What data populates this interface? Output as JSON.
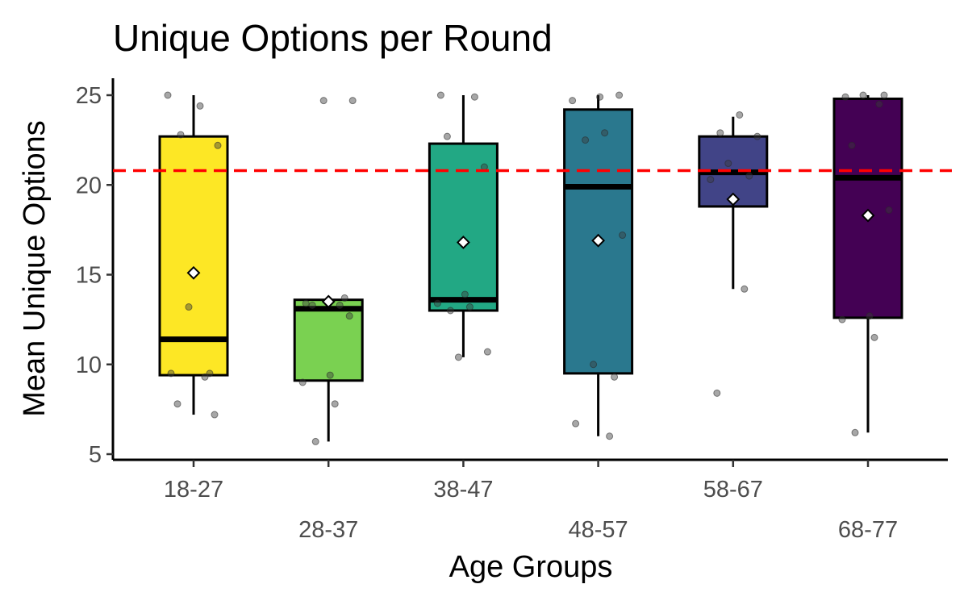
{
  "chart_data": {
    "type": "boxplot",
    "title": "Unique Options per Round",
    "xlabel": "Age Groups",
    "ylabel": "Mean Unique Options",
    "ylim": [
      5,
      26
    ],
    "yticks": [
      5,
      10,
      15,
      20,
      25
    ],
    "grid": false,
    "legend": "none",
    "reference_line": {
      "value": 20.8,
      "color": "#ff0000",
      "style": "dashed"
    },
    "groups": [
      {
        "label": "18-27",
        "color": "#fde725",
        "min": 7.2,
        "q1": 9.4,
        "median": 11.4,
        "q3": 22.7,
        "max": 25.0,
        "mean": 15.1,
        "points": [
          25.0,
          24.4,
          22.8,
          22.2,
          13.2,
          9.5,
          9.5,
          9.3,
          7.8,
          7.2
        ]
      },
      {
        "label": "28-37",
        "color": "#7ad151",
        "min": 5.7,
        "q1": 9.1,
        "median": 13.1,
        "q3": 13.6,
        "max": 13.6,
        "mean": 13.5,
        "points": [
          24.7,
          24.7,
          13.7,
          13.4,
          13.3,
          13.3,
          12.7,
          9.4,
          9.0,
          7.8,
          5.7
        ]
      },
      {
        "label": "38-47",
        "color": "#22a884",
        "min": 10.4,
        "q1": 13.0,
        "median": 13.6,
        "q3": 22.3,
        "max": 25.0,
        "mean": 16.8,
        "points": [
          25.0,
          24.9,
          22.7,
          21.0,
          13.9,
          13.4,
          13.2,
          13.0,
          10.7,
          10.4
        ]
      },
      {
        "label": "48-57",
        "color": "#2a788e",
        "min": 6.0,
        "q1": 9.5,
        "median": 19.9,
        "q3": 24.2,
        "max": 25.0,
        "mean": 16.9,
        "points": [
          25.0,
          24.9,
          24.7,
          22.9,
          22.5,
          17.2,
          10.0,
          9.3,
          6.7,
          6.0
        ]
      },
      {
        "label": "58-67",
        "color": "#414487",
        "min": 14.2,
        "q1": 18.8,
        "median": 20.7,
        "q3": 22.7,
        "max": 23.8,
        "mean": 19.2,
        "points": [
          23.9,
          22.9,
          22.7,
          21.2,
          20.5,
          20.3,
          14.2,
          8.4
        ]
      },
      {
        "label": "68-77",
        "color": "#440154",
        "min": 6.2,
        "q1": 12.6,
        "median": 20.4,
        "q3": 24.8,
        "max": 25.0,
        "mean": 18.3,
        "points": [
          25.0,
          25.0,
          24.9,
          24.5,
          22.2,
          18.6,
          12.7,
          12.5,
          11.5,
          6.2
        ]
      }
    ]
  }
}
